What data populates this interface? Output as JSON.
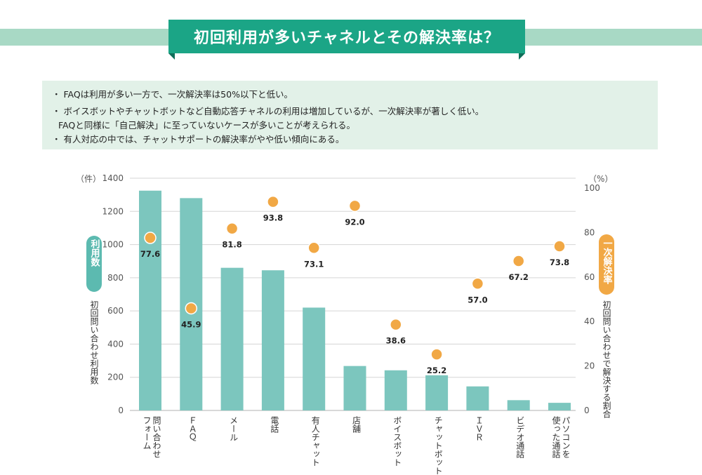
{
  "header": {
    "title": "初回利用が多いチャネルとその解決率は？"
  },
  "summary": {
    "lines": [
      "・ FAQは利用が多い一方で、一次解決率は50%以下と低い。",
      "・ ボイスボットやチャットボットなど自動応答チャネルの利用は増加しているが、一次解決率が著しく低い。",
      "FAQと同様に「自己解決」に至っていないケースが多いことが考えられる。",
      "・ 有人対応の中では、チャットサポートの解決率がやや低い傾向にある。"
    ]
  },
  "colors": {
    "bar": "#7cc6be",
    "dot": "#f1a845",
    "dot_stroke": "#ffffff",
    "title_bg": "#1ba586",
    "left_pill": "#5cbab0",
    "right_pill": "#f1a845",
    "axis_text": "#555555"
  },
  "chart_data": {
    "type": "bar",
    "title": "",
    "categories": [
      [
        "問い合わせ",
        "フォーム"
      ],
      [
        "ＦＡＱ"
      ],
      [
        "メール"
      ],
      [
        "電話"
      ],
      [
        "有人チャット"
      ],
      [
        "店舗"
      ],
      [
        "ボイスボット"
      ],
      [
        "チャットボット"
      ],
      [
        "ＩＶＲ"
      ],
      [
        "ビデオ通話"
      ],
      [
        "パソコンを",
        "使った通話"
      ]
    ],
    "series": [
      {
        "name": "利用数",
        "kind": "bar",
        "axis": "left",
        "values": [
          1325,
          1280,
          860,
          845,
          620,
          268,
          242,
          212,
          145,
          62,
          46
        ]
      },
      {
        "name": "一次解決率",
        "kind": "dot",
        "axis": "right",
        "values": [
          77.6,
          45.9,
          81.8,
          93.8,
          73.1,
          92.0,
          38.6,
          25.2,
          57.0,
          67.2,
          73.8
        ],
        "labels": [
          "77.6",
          "45.9",
          "81.8",
          "93.8",
          "73.1",
          "92.0",
          "38.6",
          "25.2",
          "57.0",
          "67.2",
          "73.8"
        ]
      }
    ],
    "left_axis": {
      "unit": "（件）",
      "ylim": [
        0,
        1400
      ],
      "ticks": [
        "0",
        "200",
        "400",
        "600",
        "800",
        "1000",
        "1200",
        "1400"
      ],
      "tick_values": [
        0,
        200,
        400,
        600,
        800,
        1000,
        1200,
        1400
      ],
      "badge": "利用数",
      "label": "初回問い合わせ利用数"
    },
    "right_axis": {
      "unit": "（%）",
      "ylim": [
        0,
        100
      ],
      "ticks": [
        "0",
        "20",
        "40",
        "60",
        "80",
        "100"
      ],
      "tick_values": [
        0,
        20,
        40,
        60,
        80,
        100
      ],
      "badge": "一次解決率",
      "label": "初回問い合わせで解決する割合"
    }
  }
}
